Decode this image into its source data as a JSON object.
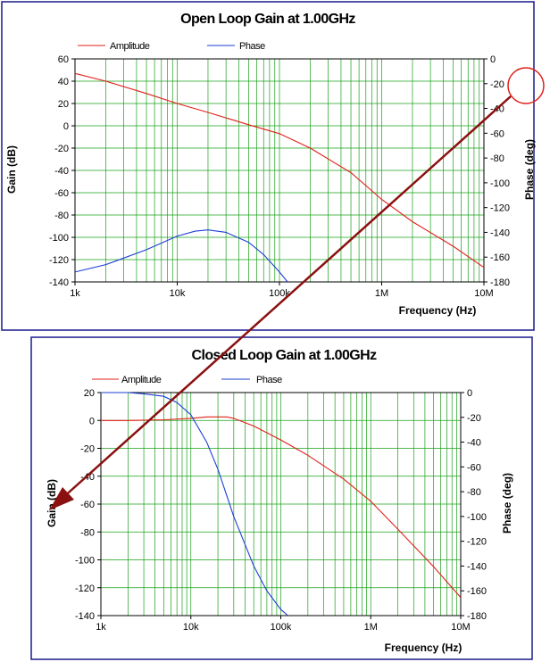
{
  "colors": {
    "amplitude": "#e0201a",
    "phase": "#1c3fd6",
    "grid": "#19a019",
    "frame": "#1a1a8c",
    "arrow": "#8b1010",
    "callout": "#e0201a"
  },
  "chart_data": [
    {
      "type": "line",
      "title": "Open Loop Gain at 1.00GHz",
      "xlabel": "Frequency (Hz)",
      "ylabel": "Gain (dB)",
      "y2label": "Phase (deg)",
      "x_scale": "log",
      "xlim": [
        1000,
        10000000
      ],
      "ylim": [
        -140,
        60
      ],
      "y2lim": [
        -180,
        0
      ],
      "x_ticks": [
        "1k",
        "10k",
        "100k",
        "1M",
        "10M"
      ],
      "y_ticks": [
        "60",
        "40",
        "20",
        "0",
        "-20",
        "-40",
        "-60",
        "-80",
        "-100",
        "-120",
        "-140"
      ],
      "y2_ticks": [
        "0",
        "-20",
        "-40",
        "-60",
        "-80",
        "-100",
        "-120",
        "-140",
        "-160",
        "-180"
      ],
      "legend": "top",
      "grid": true,
      "series": [
        {
          "name": "Amplitude",
          "axis": "left",
          "x": [
            1000,
            2000,
            5000,
            10000,
            20000,
            50000,
            100000,
            200000,
            500000,
            1000000,
            2000000,
            5000000,
            10000000
          ],
          "values": [
            47,
            40,
            29,
            20,
            12,
            1,
            -7,
            -20,
            -42,
            -66,
            -86,
            -108,
            -127
          ]
        },
        {
          "name": "Phase",
          "axis": "right",
          "x": [
            1000,
            2000,
            5000,
            10000,
            15000,
            20000,
            30000,
            50000,
            70000,
            100000,
            120000
          ],
          "values": [
            -172,
            -166,
            -154,
            -143,
            -139,
            -138,
            -140,
            -148,
            -158,
            -172,
            -180
          ]
        }
      ]
    },
    {
      "type": "line",
      "title": "Closed Loop Gain at 1.00GHz",
      "xlabel": "Frequency (Hz)",
      "ylabel": "Gain (dB)",
      "y2label": "Phase (deg)",
      "x_scale": "log",
      "xlim": [
        1000,
        10000000
      ],
      "ylim": [
        -140,
        20
      ],
      "y2lim": [
        -180,
        0
      ],
      "x_ticks": [
        "1k",
        "10k",
        "100k",
        "1M",
        "10M"
      ],
      "y_ticks": [
        "20",
        "0",
        "-20",
        "-40",
        "-60",
        "-80",
        "-100",
        "-120",
        "-140"
      ],
      "y2_ticks": [
        "0",
        "-20",
        "-40",
        "-60",
        "-80",
        "-100",
        "-120",
        "-140",
        "-160",
        "-180"
      ],
      "legend": "top",
      "grid": true,
      "series": [
        {
          "name": "Amplitude",
          "axis": "left",
          "x": [
            1000,
            2000,
            5000,
            10000,
            15000,
            20000,
            25000,
            30000,
            50000,
            100000,
            200000,
            500000,
            1000000,
            2000000,
            5000000,
            10000000
          ],
          "values": [
            0,
            0,
            0.5,
            1.5,
            2.5,
            2.5,
            2.5,
            1.5,
            -4,
            -14,
            -25,
            -42,
            -58,
            -78,
            -105,
            -127
          ]
        },
        {
          "name": "Phase",
          "axis": "right",
          "x": [
            1000,
            2000,
            3000,
            5000,
            7000,
            10000,
            15000,
            20000,
            30000,
            50000,
            70000,
            100000,
            120000
          ],
          "values": [
            0,
            0,
            -1,
            -3,
            -8,
            -18,
            -40,
            -62,
            -100,
            -140,
            -160,
            -175,
            -180
          ]
        }
      ]
    }
  ]
}
